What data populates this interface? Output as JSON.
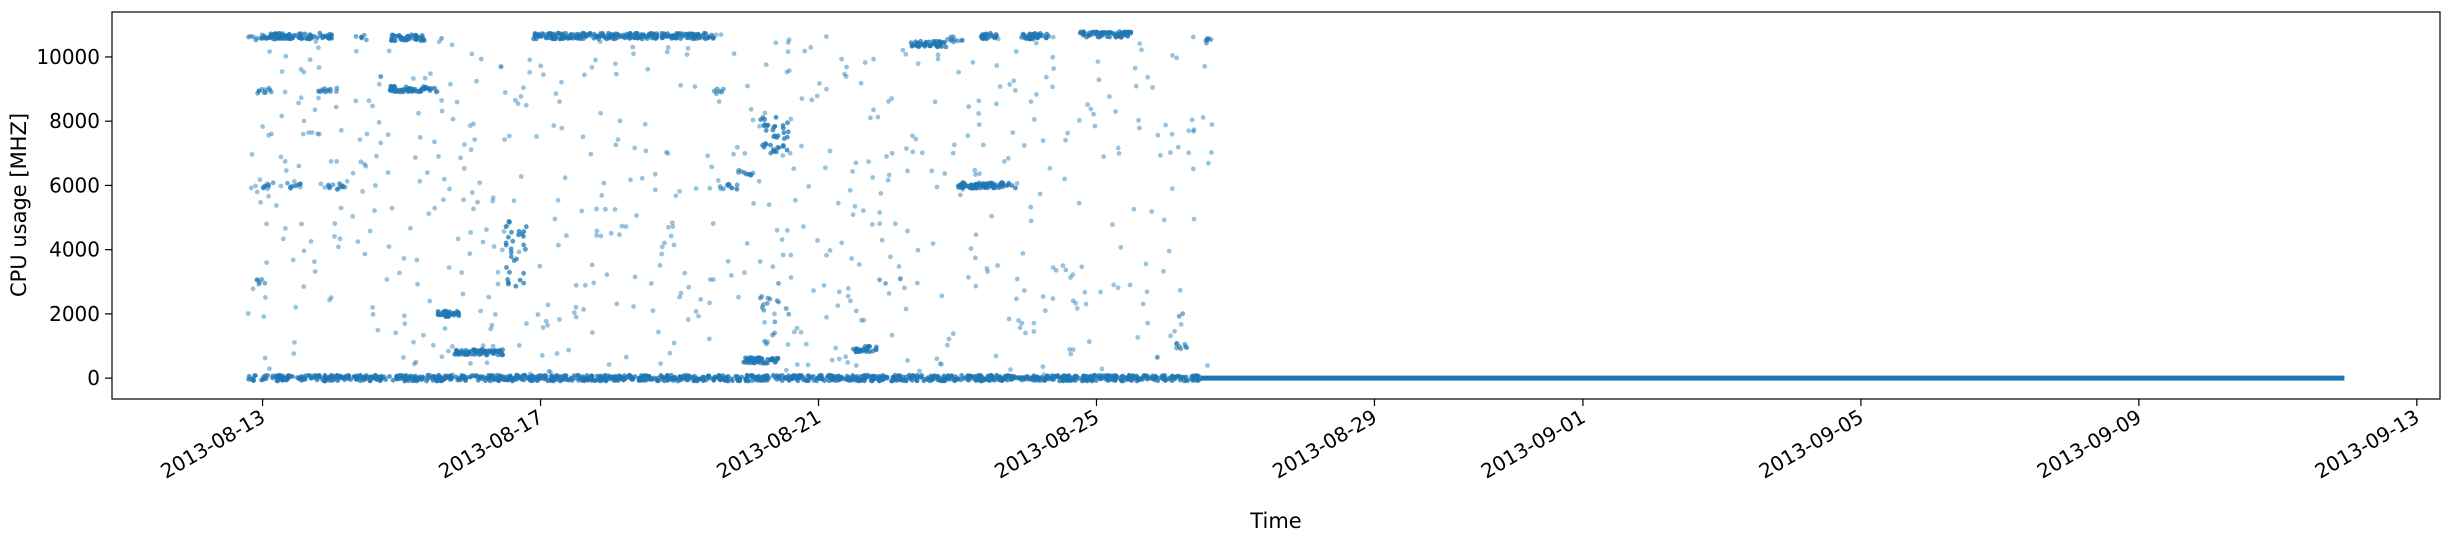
{
  "chart_data": {
    "type": "scatter",
    "title": "",
    "xlabel": "Time",
    "ylabel": "CPU usage [MHZ]",
    "xlim": [
      "2013-08-10T20:00:00",
      "2013-09-13T08:00:00"
    ],
    "ylim": [
      -650,
      11400
    ],
    "xticks": [
      "2013-08-13",
      "2013-08-17",
      "2013-08-21",
      "2013-08-25",
      "2013-08-29",
      "2013-09-01",
      "2013-09-05",
      "2013-09-09",
      "2013-09-13"
    ],
    "yticks": [
      0,
      2000,
      4000,
      6000,
      8000,
      10000
    ],
    "grid": false,
    "marker_color": "#1f77b4",
    "series": [
      {
        "name": "CPU usage",
        "clusters": [
          {
            "start": "2013-08-12T18:00",
            "end": "2013-08-26T12:00",
            "values": [
              0
            ],
            "density": "high",
            "note": "baseline idle level"
          },
          {
            "start": "2013-08-26T12:00",
            "end": "2013-09-11T23:00",
            "values": [
              0
            ],
            "density": "continuous",
            "note": "flat zero line"
          },
          {
            "start": "2013-08-12T19:00",
            "end": "2013-08-13T00:00",
            "values": [
              10600
            ],
            "density": "medium"
          },
          {
            "start": "2013-08-13T00:00",
            "end": "2013-08-14T00:00",
            "values": [
              10650
            ],
            "density": "high"
          },
          {
            "start": "2013-08-14T08:00",
            "end": "2013-08-14T12:00",
            "values": [
              10600
            ],
            "density": "medium"
          },
          {
            "start": "2013-08-14T20:00",
            "end": "2013-08-15T08:00",
            "values": [
              10600
            ],
            "density": "high"
          },
          {
            "start": "2013-08-15T12:00",
            "end": "2013-08-15T14:00",
            "values": [
              10600
            ],
            "density": "low"
          },
          {
            "start": "2013-08-12T22:00",
            "end": "2013-08-13T04:00",
            "values": [
              8950
            ],
            "density": "medium"
          },
          {
            "start": "2013-08-13T18:00",
            "end": "2013-08-14T02:00",
            "values": [
              8950
            ],
            "density": "medium"
          },
          {
            "start": "2013-08-14T20:00",
            "end": "2013-08-15T12:00",
            "values": [
              9000
            ],
            "density": "high"
          },
          {
            "start": "2013-08-12T23:00",
            "end": "2013-08-13T04:00",
            "values": [
              6000
            ],
            "density": "medium"
          },
          {
            "start": "2013-08-13T08:00",
            "end": "2013-08-13T14:00",
            "values": [
              6000
            ],
            "density": "medium"
          },
          {
            "start": "2013-08-13T22:00",
            "end": "2013-08-14T06:00",
            "values": [
              5950
            ],
            "density": "medium"
          },
          {
            "start": "2013-08-12T22:00",
            "end": "2013-08-13T02:00",
            "values": [
              3000
            ],
            "density": "medium"
          },
          {
            "start": "2013-08-15T12:00",
            "end": "2013-08-15T20:00",
            "values": [
              2000
            ],
            "density": "high"
          },
          {
            "start": "2013-08-15T18:00",
            "end": "2013-08-16T11:00",
            "values": [
              800
            ],
            "density": "high"
          },
          {
            "start": "2013-08-16T12:00",
            "end": "2013-08-16T20:00",
            "values": [
              2800,
              5000
            ],
            "density": "high",
            "note": "spread cloud"
          },
          {
            "start": "2013-08-16T20:00",
            "end": "2013-08-19T12:00",
            "values": [
              10650
            ],
            "density": "high"
          },
          {
            "start": "2013-08-19T12:00",
            "end": "2013-08-19T16:00",
            "values": [
              8950
            ],
            "density": "medium"
          },
          {
            "start": "2013-08-19T14:00",
            "end": "2013-08-19T20:00",
            "values": [
              5950
            ],
            "density": "medium"
          },
          {
            "start": "2013-08-19T20:00",
            "end": "2013-08-20T02:00",
            "values": [
              6400
            ],
            "density": "medium"
          },
          {
            "start": "2013-08-19T22:00",
            "end": "2013-08-20T10:00",
            "values": [
              550
            ],
            "density": "high"
          },
          {
            "start": "2013-08-20T04:00",
            "end": "2013-08-20T14:00",
            "values": [
              7000,
              8200
            ],
            "density": "high",
            "note": "spread cloud"
          },
          {
            "start": "2013-08-20T03:00",
            "end": "2013-08-20T14:00",
            "values": [
              1000,
              3000
            ],
            "density": "medium",
            "note": "spread cloud"
          },
          {
            "start": "2013-08-21T12:00",
            "end": "2013-08-21T20:00",
            "values": [
              900
            ],
            "density": "high"
          },
          {
            "start": "2013-08-21T20:00",
            "end": "2013-08-22T00:00",
            "values": [
              3000
            ],
            "density": "low"
          },
          {
            "start": "2013-08-22T08:00",
            "end": "2013-08-22T20:00",
            "values": [
              10400
            ],
            "density": "high"
          },
          {
            "start": "2013-08-22T20:00",
            "end": "2013-08-23T02:00",
            "values": [
              10550
            ],
            "density": "medium"
          },
          {
            "start": "2013-08-23T00:00",
            "end": "2013-08-23T20:00",
            "values": [
              6000
            ],
            "density": "high"
          },
          {
            "start": "2013-08-23T08:00",
            "end": "2013-08-23T14:00",
            "values": [
              10650
            ],
            "density": "high"
          },
          {
            "start": "2013-08-23T22:00",
            "end": "2013-08-24T08:00",
            "values": [
              10650
            ],
            "density": "high"
          },
          {
            "start": "2013-08-24T18:00",
            "end": "2013-08-25T12:00",
            "values": [
              10700
            ],
            "density": "high"
          },
          {
            "start": "2013-08-26T02:00",
            "end": "2013-08-26T06:00",
            "values": [
              2000
            ],
            "density": "low"
          },
          {
            "start": "2013-08-26T03:00",
            "end": "2013-08-26T08:00",
            "values": [
              1000
            ],
            "density": "medium"
          },
          {
            "start": "2013-08-26T12:00",
            "end": "2013-08-26T16:00",
            "values": [
              10500
            ],
            "density": "medium"
          }
        ],
        "scatter_range": {
          "start": "2013-08-12T18:00",
          "end": "2013-08-26T16:00",
          "min": 0,
          "max": 10700,
          "note": "sparse random points throughout the active period"
        }
      }
    ]
  }
}
